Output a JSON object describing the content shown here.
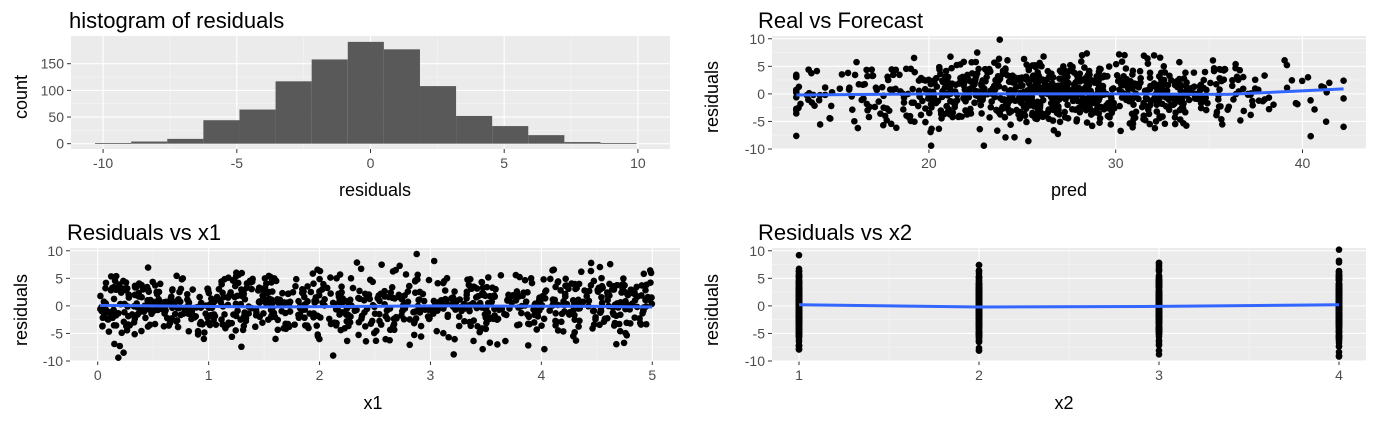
{
  "colors": {
    "panel_bg": "#ebebeb",
    "grid": "#ffffff",
    "bar": "#595959",
    "point": "#000000",
    "smooth": "#3366ff"
  },
  "chart_data": [
    {
      "id": "hist",
      "type": "bar",
      "title": "histogram of residuals",
      "xlabel": "residuals",
      "ylabel": "count",
      "xlim": [
        -11.2,
        11.2
      ],
      "ylim": [
        -10,
        202
      ],
      "xticks": [
        -10,
        -5,
        0,
        5,
        10
      ],
      "yticks": [
        0,
        50,
        100,
        150
      ],
      "bin_edges": [
        -10.3,
        -8.95,
        -7.6,
        -6.25,
        -4.9,
        -3.55,
        -2.2,
        -0.85,
        0.5,
        1.85,
        3.2,
        4.55,
        5.9,
        7.25,
        8.6,
        9.95
      ],
      "values": [
        1,
        4,
        9,
        44,
        64,
        117,
        158,
        191,
        177,
        108,
        52,
        33,
        16,
        3,
        1
      ]
    },
    {
      "id": "real_vs_forecast",
      "type": "scatter",
      "title": "Real vs Forecast",
      "xlabel": "pred",
      "ylabel": "residuals",
      "xlim": [
        11.6,
        43.4
      ],
      "ylim": [
        -10,
        10.5
      ],
      "xticks": [
        20,
        30,
        40
      ],
      "yticks": [
        -10,
        -5,
        0,
        5,
        10
      ],
      "x_range": [
        12.9,
        42.2
      ],
      "n_points": 900,
      "smooth": {
        "x": [
          12.9,
          20,
          30,
          36,
          42.2
        ],
        "y": [
          -0.2,
          0.0,
          0.0,
          -0.1,
          0.9
        ]
      }
    },
    {
      "id": "res_vs_x1",
      "type": "scatter",
      "title": "Residuals vs  x1",
      "xlabel": "x1",
      "ylabel": "residuals",
      "xlim": [
        -0.25,
        5.25
      ],
      "ylim": [
        -10,
        10.5
      ],
      "xticks": [
        0,
        1,
        2,
        3,
        4,
        5
      ],
      "yticks": [
        -10,
        -5,
        0,
        5,
        10
      ],
      "x_range": [
        0.02,
        5.0
      ],
      "n_points": 900,
      "smooth": {
        "x": [
          0.02,
          1.5,
          3,
          4.5,
          5.0
        ],
        "y": [
          0.1,
          -0.2,
          0.0,
          -0.1,
          -0.2
        ]
      }
    },
    {
      "id": "res_vs_x2",
      "type": "scatter",
      "title": "Residuals vs  x2",
      "xlabel": "x2",
      "ylabel": "residuals",
      "xlim": [
        0.85,
        4.15
      ],
      "ylim": [
        -10,
        10.5
      ],
      "xticks": [
        1,
        2,
        3,
        4
      ],
      "yticks": [
        -10,
        -5,
        0,
        5,
        10
      ],
      "categories": [
        1,
        2,
        3,
        4
      ],
      "column_ranges": [
        [
          -7.9,
          9.2
        ],
        [
          -8.1,
          7.4
        ],
        [
          -8.8,
          7.8
        ],
        [
          -9.2,
          10.2
        ]
      ],
      "n_points_per_column": 250,
      "smooth": {
        "x": [
          1,
          2,
          3,
          4
        ],
        "y": [
          0.2,
          -0.2,
          -0.1,
          0.2
        ]
      }
    }
  ]
}
